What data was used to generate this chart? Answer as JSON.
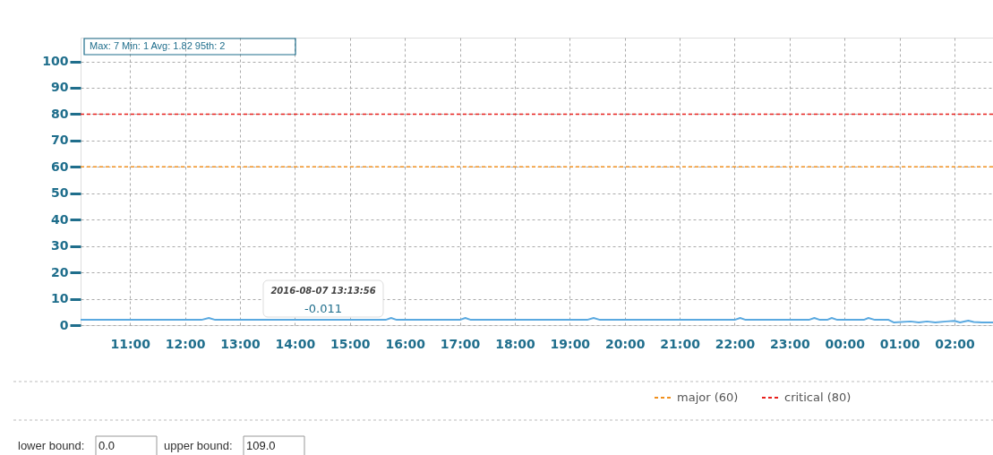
{
  "chart_data": {
    "type": "line",
    "x": [
      "2016-08-07T10:06",
      "2016-08-07T12:18",
      "2016-08-07T12:26",
      "2016-08-07T12:33",
      "2016-08-07T15:39",
      "2016-08-07T15:45",
      "2016-08-07T15:51",
      "2016-08-07T17:00",
      "2016-08-07T17:06",
      "2016-08-07T17:12",
      "2016-08-07T19:19",
      "2016-08-07T19:26",
      "2016-08-07T19:33",
      "2016-08-07T22:00",
      "2016-08-07T22:06",
      "2016-08-07T22:12",
      "2016-08-07T23:21",
      "2016-08-07T23:27",
      "2016-08-07T23:33",
      "2016-08-07T23:41",
      "2016-08-07T23:46",
      "2016-08-07T23:52",
      "2016-08-08T00:21",
      "2016-08-08T00:26",
      "2016-08-08T00:33",
      "2016-08-08T00:48",
      "2016-08-08T00:54",
      "2016-08-08T01:12",
      "2016-08-08T01:21",
      "2016-08-08T01:30",
      "2016-08-08T01:39",
      "2016-08-08T01:51",
      "2016-08-08T02:00",
      "2016-08-08T02:06",
      "2016-08-08T02:15",
      "2016-08-08T02:21",
      "2016-08-08T02:30",
      "2016-08-08T02:42"
    ],
    "series": [
      {
        "color": "#5aa9e0",
        "values": [
          2,
          2,
          2.7,
          2,
          2,
          2.7,
          2,
          2,
          2.7,
          2,
          2,
          2.7,
          2,
          2,
          2.7,
          2,
          2,
          2.7,
          2,
          2,
          2.7,
          2,
          2,
          2.7,
          2,
          2,
          1,
          1.4,
          1,
          1.4,
          1,
          1.4,
          1.6,
          1,
          1.7,
          1.2,
          1,
          1
        ]
      }
    ],
    "xlim": [
      "2016-08-07T10:06",
      "2016-08-08T02:42"
    ],
    "xticks": [
      {
        "value": "2016-08-07T11:00",
        "label": "11:00"
      },
      {
        "value": "2016-08-07T12:00",
        "label": "12:00"
      },
      {
        "value": "2016-08-07T13:00",
        "label": "13:00"
      },
      {
        "value": "2016-08-07T14:00",
        "label": "14:00"
      },
      {
        "value": "2016-08-07T15:00",
        "label": "15:00"
      },
      {
        "value": "2016-08-07T16:00",
        "label": "16:00"
      },
      {
        "value": "2016-08-07T17:00",
        "label": "17:00"
      },
      {
        "value": "2016-08-07T18:00",
        "label": "18:00"
      },
      {
        "value": "2016-08-07T19:00",
        "label": "19:00"
      },
      {
        "value": "2016-08-07T20:00",
        "label": "20:00"
      },
      {
        "value": "2016-08-07T21:00",
        "label": "21:00"
      },
      {
        "value": "2016-08-07T22:00",
        "label": "22:00"
      },
      {
        "value": "2016-08-07T23:00",
        "label": "23:00"
      },
      {
        "value": "2016-08-08T00:00",
        "label": "00:00"
      },
      {
        "value": "2016-08-08T01:00",
        "label": "01:00"
      },
      {
        "value": "2016-08-08T02:00",
        "label": "02:00"
      }
    ],
    "ylim": [
      0,
      109
    ],
    "yticks": [
      0,
      10,
      20,
      30,
      40,
      50,
      60,
      70,
      80,
      90,
      100
    ],
    "grid": true,
    "legend": "bottom",
    "ref_lines": [
      {
        "axis": "y",
        "value": 60,
        "label": "major (60)",
        "color": "#f0901e",
        "line_style": "dashed"
      },
      {
        "axis": "y",
        "value": 80,
        "label": "critical (80)",
        "color": "#e8201c",
        "line_style": "dashed"
      }
    ],
    "annotations": [
      "Max: 7   Min: 1   Avg: 1.82   95th: 2",
      "2016-08-07 13:13:56",
      "-0.011",
      "lower bound:",
      "0.0",
      "upper bound:",
      "109.0"
    ]
  }
}
